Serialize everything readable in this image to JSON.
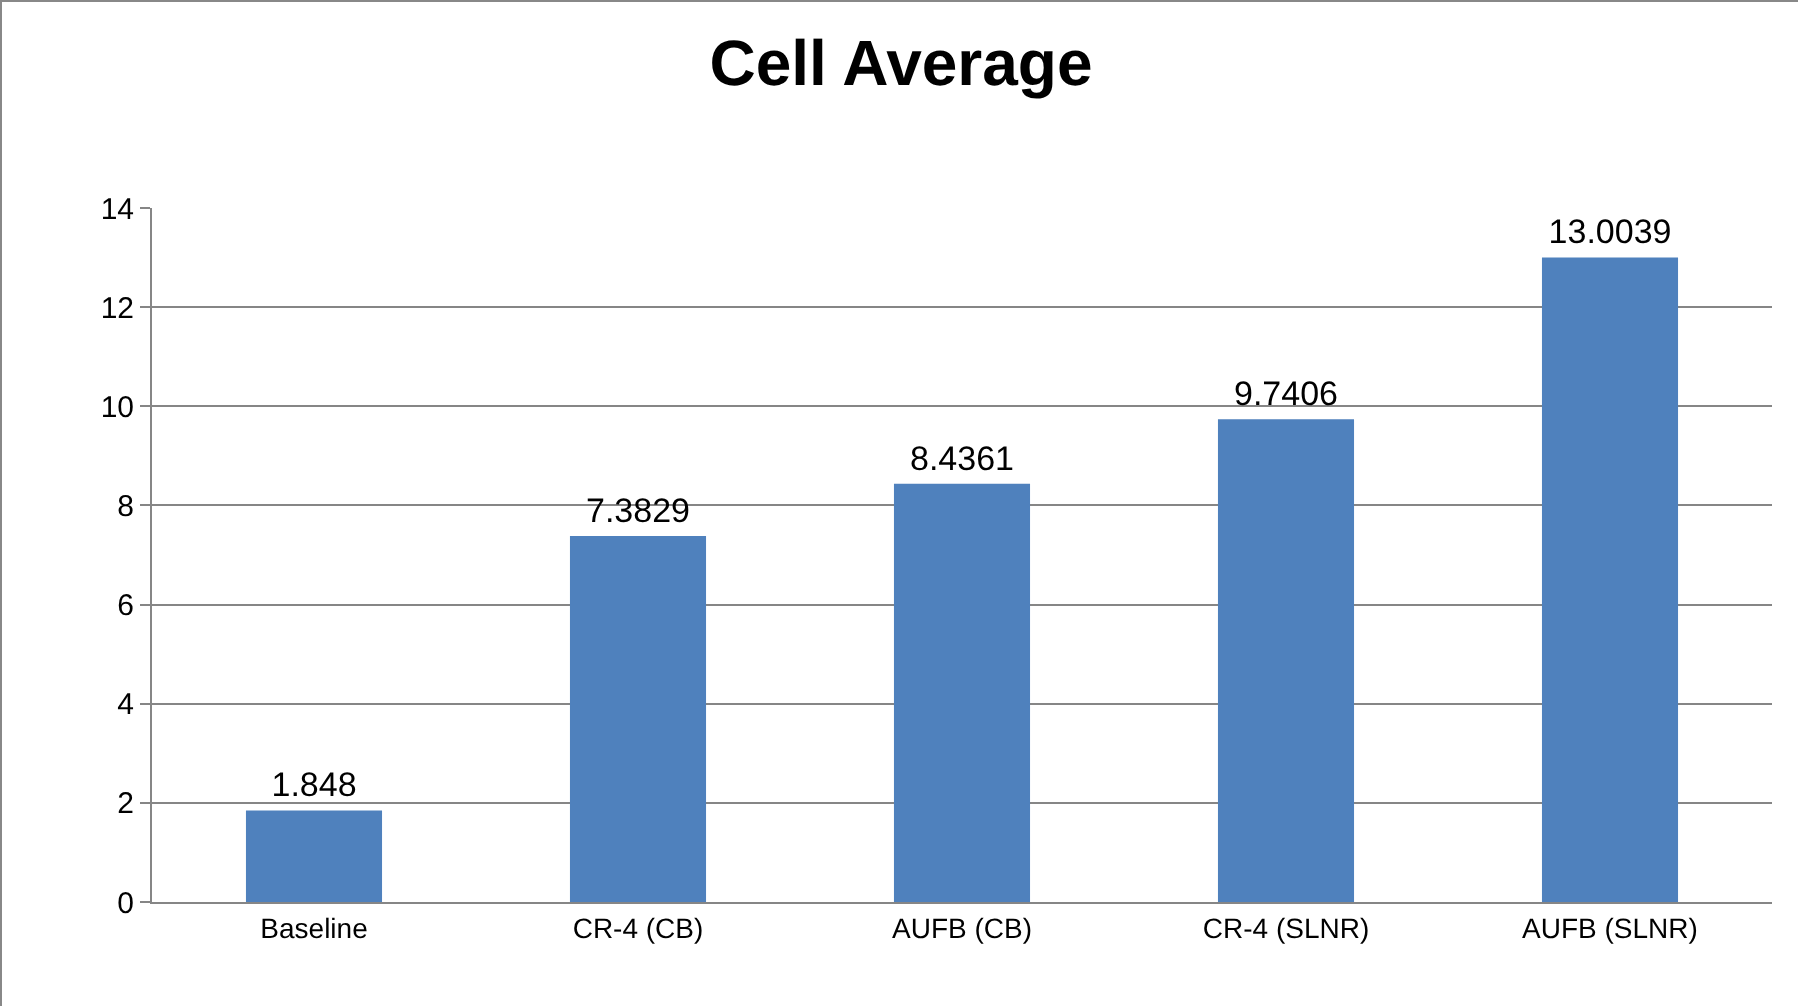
{
  "chart_data": {
    "type": "bar",
    "title": "Cell Average",
    "categories": [
      "Baseline",
      "CR-4 (CB)",
      "AUFB (CB)",
      "CR-4 (SLNR)",
      "AUFB (SLNR)"
    ],
    "values": [
      1.848,
      7.3829,
      8.4361,
      9.7406,
      13.0039
    ],
    "color": "#4f81bd",
    "ylim": [
      0,
      14
    ],
    "yticks": [
      0,
      2,
      4,
      6,
      8,
      10,
      12,
      14
    ],
    "grid": "y",
    "data_labels": true,
    "legend": false
  }
}
